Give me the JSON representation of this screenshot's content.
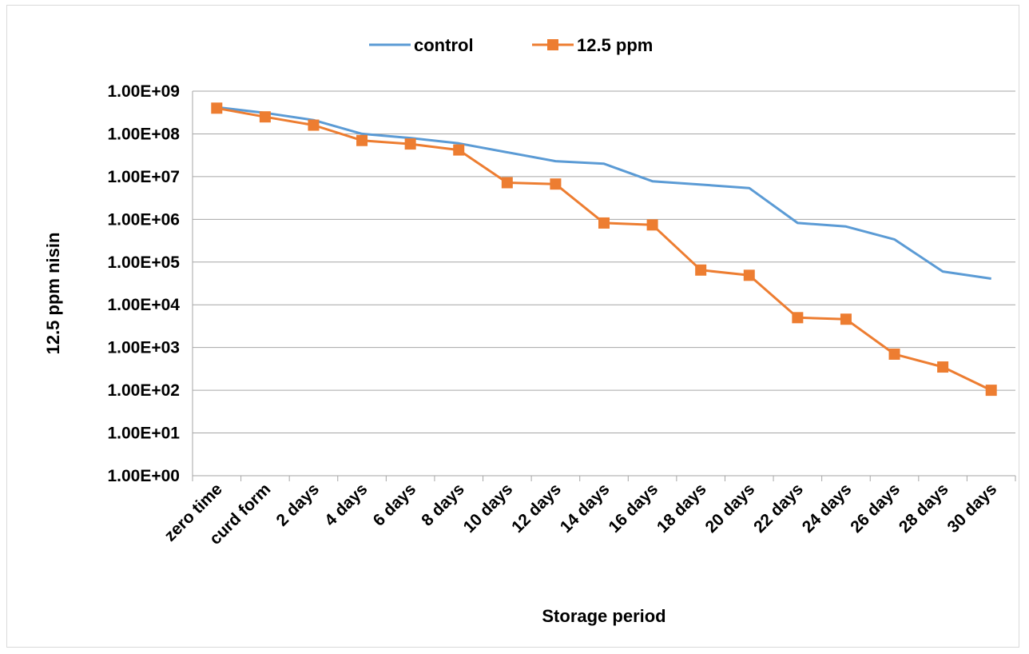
{
  "chart_data": {
    "type": "line",
    "title": "",
    "xlabel": "Storage period",
    "ylabel": "12.5 ppm nisin",
    "y_scale": "log10",
    "ylim": [
      1,
      1000000000
    ],
    "y_tick_labels": [
      "1.00E+00",
      "1.00E+01",
      "1.00E+02",
      "1.00E+03",
      "1.00E+04",
      "1.00E+05",
      "1.00E+06",
      "1.00E+07",
      "1.00E+08",
      "1.00E+09"
    ],
    "grid": "horizontal",
    "legend_position": "top",
    "categories": [
      "zero time",
      "curd form",
      "2 days",
      "4 days",
      "6 days",
      "8 days",
      "10 days",
      "12 days",
      "14 days",
      "16 days",
      "18 days",
      "20 days",
      "22 days",
      "24 days",
      "26 days",
      "28 days",
      "30 days"
    ],
    "series": [
      {
        "name": "control",
        "color": "#5b9bd5",
        "marker": "none",
        "values": [
          420000000,
          310000000,
          210000000,
          100000000,
          80000000,
          60000000,
          37000000,
          23000000,
          20000000,
          7800000,
          6500000,
          5400000,
          820000,
          680000,
          340000,
          60000,
          41000
        ]
      },
      {
        "name": "12.5 ppm",
        "color": "#ed7d31",
        "marker": "square",
        "values": [
          400000000,
          250000000,
          160000000,
          70000000,
          58000000,
          42000000,
          7200000,
          6700000,
          820000,
          740000,
          65000,
          49000,
          5000,
          4600,
          700,
          350,
          100
        ]
      }
    ]
  }
}
